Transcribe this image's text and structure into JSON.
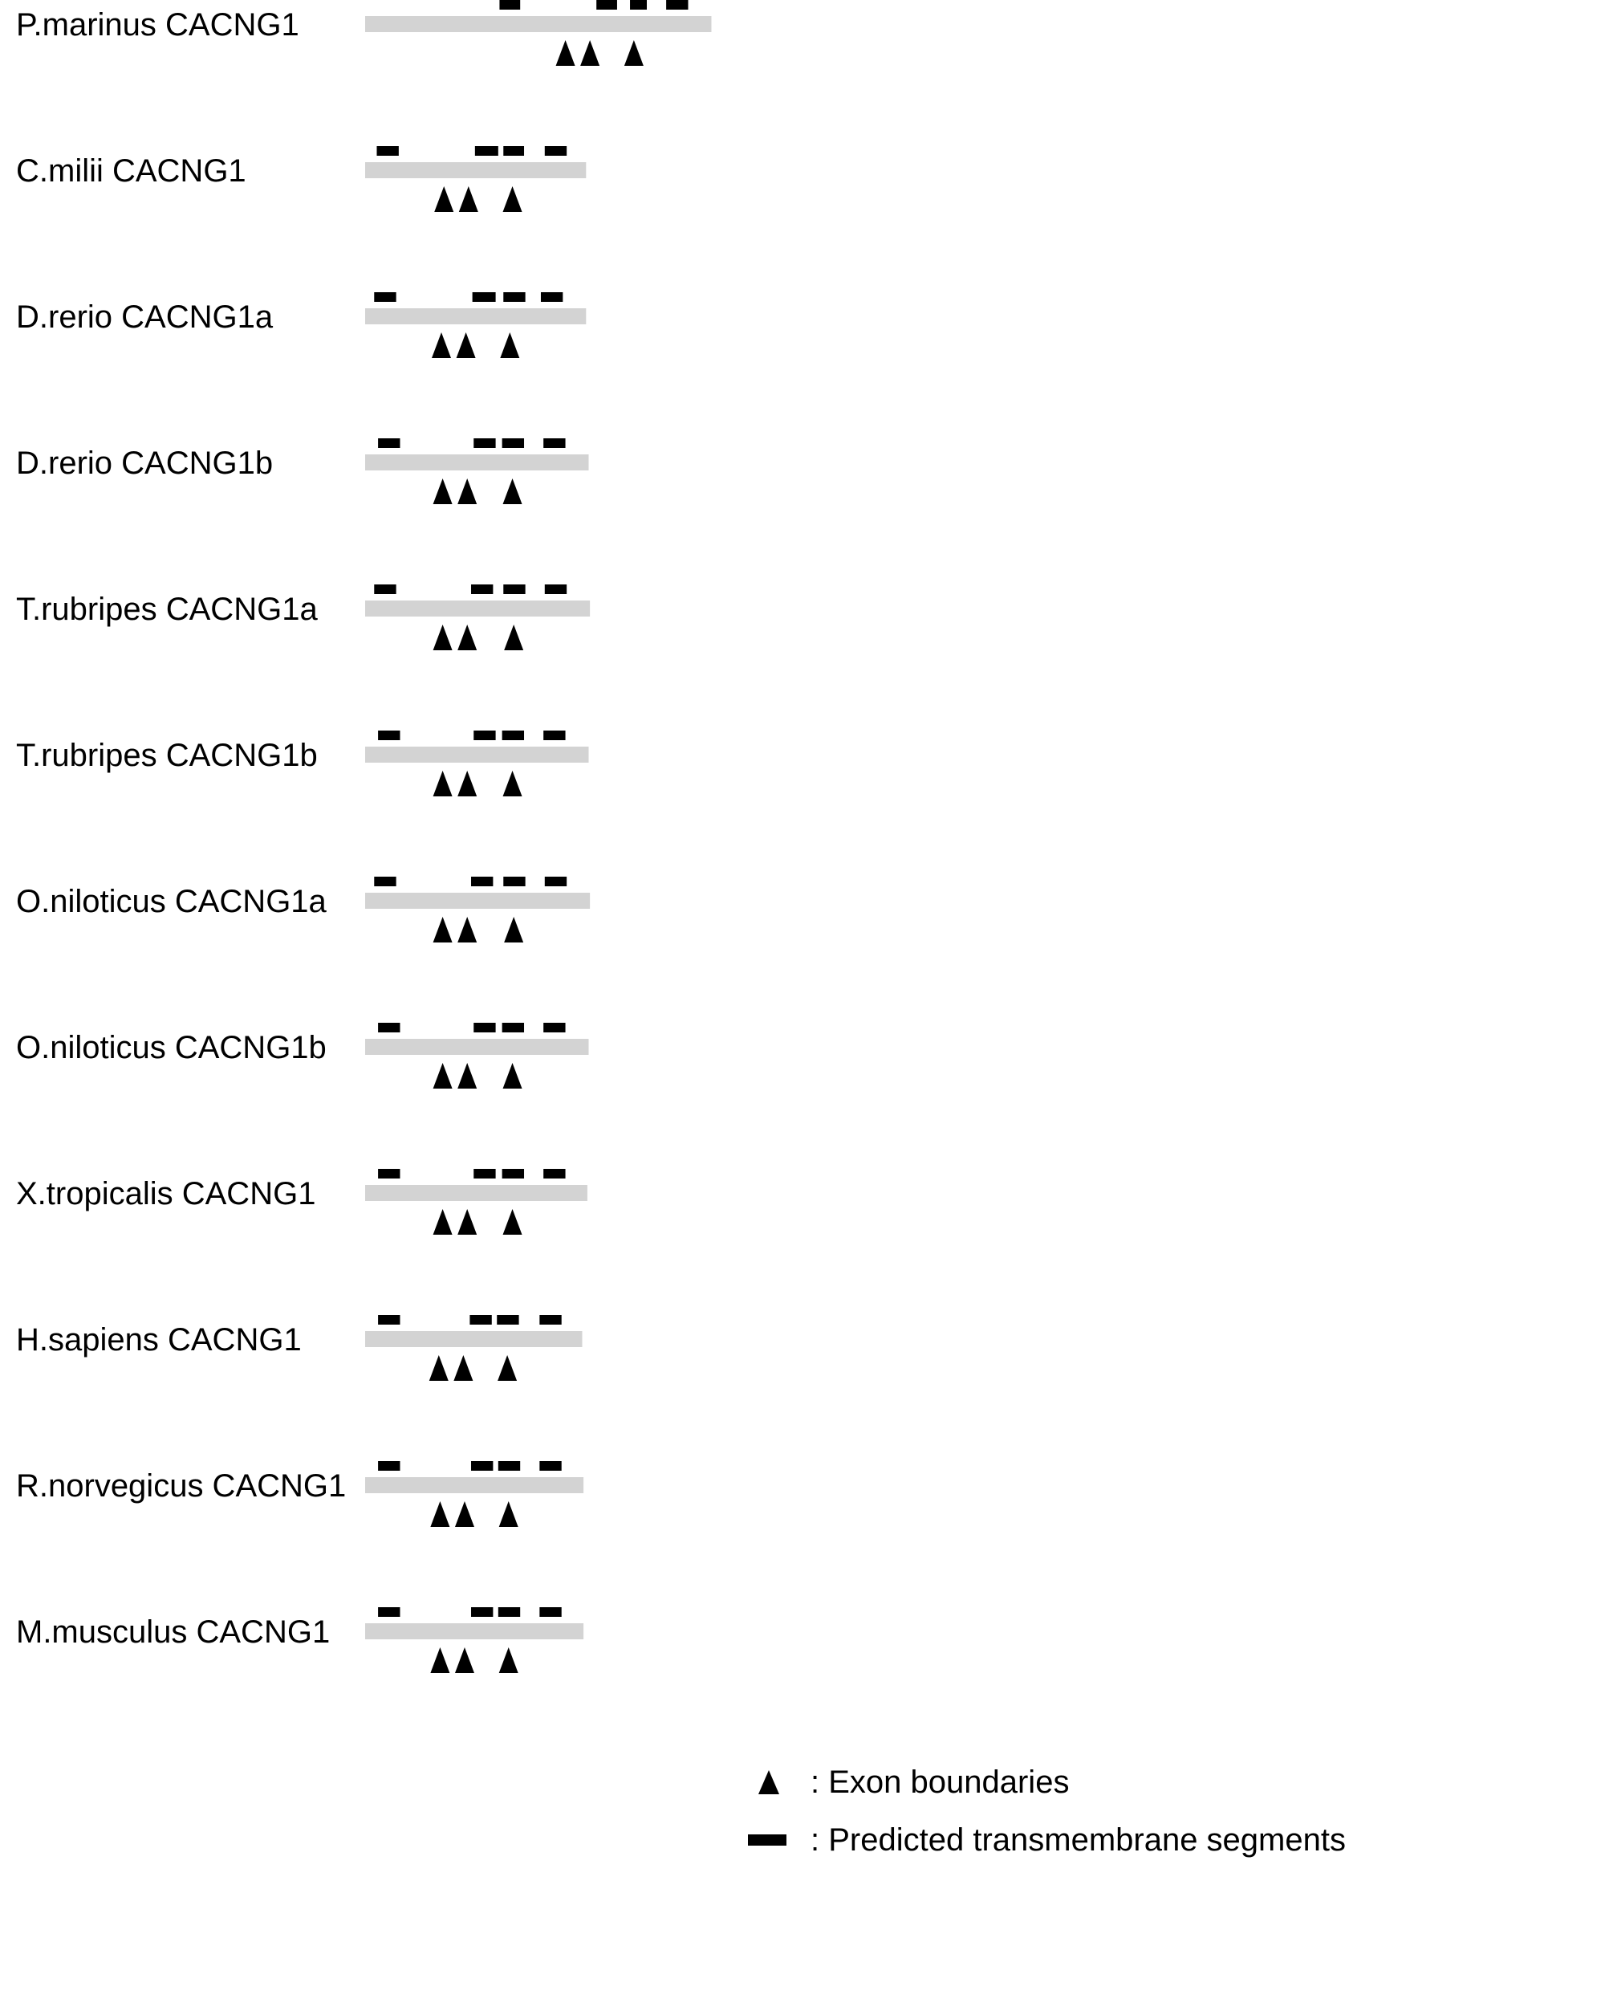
{
  "colors": {
    "protein_bar": "#d3d3d3",
    "tm_segment": "#000000",
    "exon_marker": "#000000",
    "text": "#000000",
    "background": "#ffffff"
  },
  "proteins": [
    {
      "label": "P.marinus CACNG1",
      "length": 268,
      "tm_segments": [
        [
          104,
          120
        ],
        [
          179,
          195
        ],
        [
          205,
          218
        ],
        [
          233,
          250
        ]
      ],
      "exon_boundaries": [
        155,
        174,
        208
      ]
    },
    {
      "label": "C.milii CACNG1",
      "length": 171,
      "tm_segments": [
        [
          9,
          26
        ],
        [
          85,
          103
        ],
        [
          107,
          123
        ],
        [
          139,
          156
        ]
      ],
      "exon_boundaries": [
        61,
        80,
        114
      ]
    },
    {
      "label": "D.rerio CACNG1a",
      "length": 171,
      "tm_segments": [
        [
          7,
          24
        ],
        [
          83,
          101
        ],
        [
          107,
          124
        ],
        [
          136,
          153
        ]
      ],
      "exon_boundaries": [
        59,
        78,
        112
      ]
    },
    {
      "label": "D.rerio CACNG1b",
      "length": 173,
      "tm_segments": [
        [
          10,
          27
        ],
        [
          84,
          101
        ],
        [
          106,
          123
        ],
        [
          138,
          155
        ]
      ],
      "exon_boundaries": [
        60,
        79,
        114
      ]
    },
    {
      "label": "T.rubripes CACNG1a",
      "length": 174,
      "tm_segments": [
        [
          7,
          24
        ],
        [
          82,
          99
        ],
        [
          107,
          124
        ],
        [
          139,
          156
        ]
      ],
      "exon_boundaries": [
        60,
        79,
        115
      ]
    },
    {
      "label": "T.rubripes CACNG1b",
      "length": 173,
      "tm_segments": [
        [
          10,
          27
        ],
        [
          84,
          101
        ],
        [
          106,
          123
        ],
        [
          138,
          155
        ]
      ],
      "exon_boundaries": [
        60,
        79,
        114
      ]
    },
    {
      "label": "O.niloticus CACNG1a",
      "length": 174,
      "tm_segments": [
        [
          7,
          24
        ],
        [
          82,
          99
        ],
        [
          107,
          124
        ],
        [
          139,
          156
        ]
      ],
      "exon_boundaries": [
        60,
        79,
        115
      ]
    },
    {
      "label": "O.niloticus CACNG1b",
      "length": 173,
      "tm_segments": [
        [
          10,
          27
        ],
        [
          84,
          101
        ],
        [
          106,
          123
        ],
        [
          138,
          155
        ]
      ],
      "exon_boundaries": [
        60,
        79,
        114
      ]
    },
    {
      "label": "X.tropicalis CACNG1",
      "length": 172,
      "tm_segments": [
        [
          10,
          27
        ],
        [
          84,
          101
        ],
        [
          106,
          123
        ],
        [
          138,
          155
        ]
      ],
      "exon_boundaries": [
        60,
        79,
        114
      ]
    },
    {
      "label": "H.sapiens CACNG1",
      "length": 168,
      "tm_segments": [
        [
          10,
          27
        ],
        [
          81,
          98
        ],
        [
          102,
          119
        ],
        [
          135,
          152
        ]
      ],
      "exon_boundaries": [
        57,
        76,
        110
      ]
    },
    {
      "label": "R.norvegicus CACNG1",
      "length": 169,
      "tm_segments": [
        [
          10,
          27
        ],
        [
          82,
          99
        ],
        [
          103,
          120
        ],
        [
          135,
          152
        ]
      ],
      "exon_boundaries": [
        58,
        77,
        111
      ]
    },
    {
      "label": "M.musculus CACNG1",
      "length": 169,
      "tm_segments": [
        [
          10,
          27
        ],
        [
          82,
          99
        ],
        [
          103,
          120
        ],
        [
          135,
          152
        ]
      ],
      "exon_boundaries": [
        58,
        77,
        111
      ]
    }
  ],
  "legend": {
    "exon_label": ": Exon boundaries",
    "tm_label": ": Predicted transmembrane segments"
  }
}
